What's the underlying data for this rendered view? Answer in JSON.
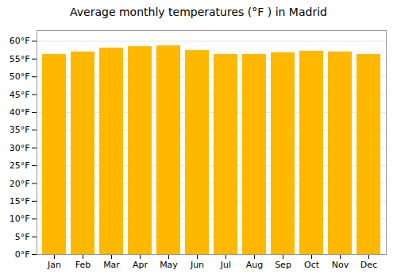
{
  "chart_data": {
    "type": "bar",
    "title": "Average monthly temperatures (°F ) in Madrid",
    "categories": [
      "Jan",
      "Feb",
      "Mar",
      "Apr",
      "May",
      "Jun",
      "Jul",
      "Aug",
      "Sep",
      "Oct",
      "Nov",
      "Dec"
    ],
    "values": [
      56.3,
      57.0,
      58.1,
      58.5,
      58.7,
      57.4,
      56.3,
      56.3,
      56.8,
      57.2,
      57.0,
      56.3
    ],
    "color": "#FFB800",
    "ylim": [
      0,
      63
    ],
    "yticks": [
      {
        "value": 0,
        "label": "0°F"
      },
      {
        "value": 5,
        "label": "5°F"
      },
      {
        "value": 10,
        "label": "10°F"
      },
      {
        "value": 15,
        "label": "15°F"
      },
      {
        "value": 20,
        "label": "20°F"
      },
      {
        "value": 25,
        "label": "25°F"
      },
      {
        "value": 30,
        "label": "30°F"
      },
      {
        "value": 35,
        "label": "35°F"
      },
      {
        "value": 40,
        "label": "40°F"
      },
      {
        "value": 45,
        "label": "45°F"
      },
      {
        "value": 50,
        "label": "50°F"
      },
      {
        "value": 55,
        "label": "55°F"
      },
      {
        "value": 60,
        "label": "60°F"
      }
    ],
    "grid": true
  }
}
